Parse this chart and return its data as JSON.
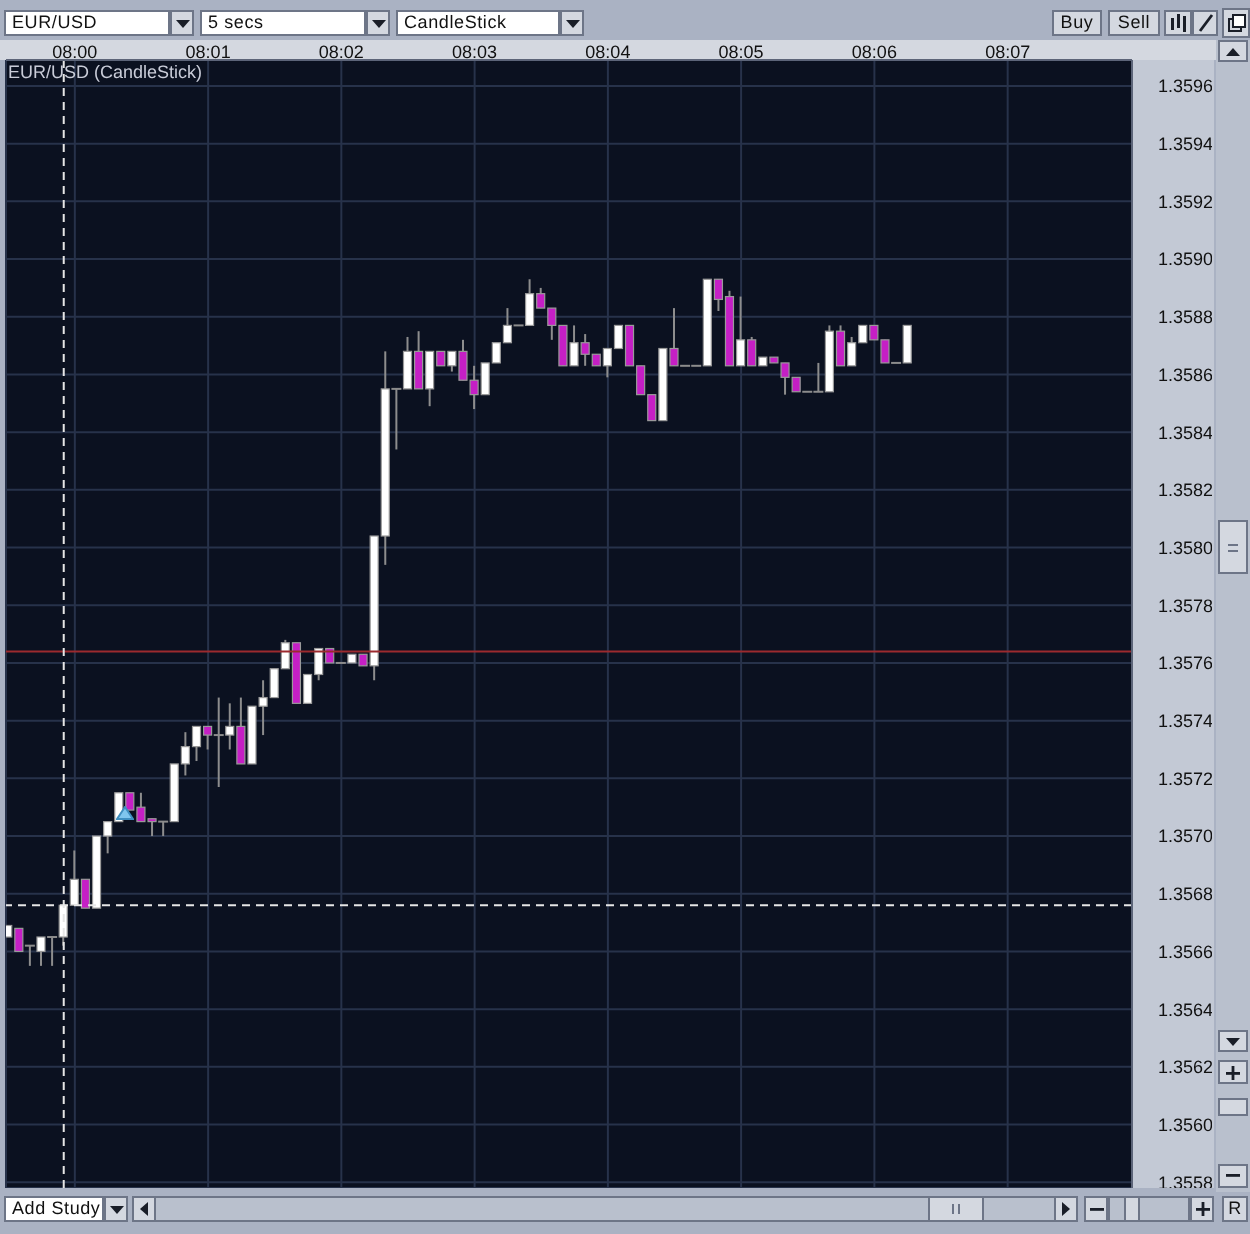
{
  "chart_data": {
    "type": "candlestick",
    "title": "EUR/USD (CandleStick)",
    "annotations": [
      "EUR/USD",
      "5 secs",
      "CandleStick",
      "Buy",
      "Sell",
      "Add Study",
      "R"
    ],
    "x": [
      7.99167,
      7.99306,
      7.99444,
      7.99583,
      7.99722,
      7.99861,
      8,
      8.00139,
      8.00278,
      8.00417,
      8.00556,
      8.00694,
      8.00833,
      8.00972,
      8.01111,
      8.0125,
      8.01389,
      8.01528,
      8.01667,
      8.01806,
      8.01944,
      8.02083,
      8.02222,
      8.02361,
      8.025,
      8.02639,
      8.02778,
      8.02917,
      8.03056,
      8.03194,
      8.03333,
      8.03472,
      8.03611,
      8.0375,
      8.03889,
      8.04028,
      8.04167,
      8.04306,
      8.04444,
      8.04583,
      8.04722,
      8.04861,
      8.05,
      8.05139,
      8.05278,
      8.05417,
      8.05556,
      8.05694,
      8.05833,
      8.05972,
      8.06111,
      8.0625,
      8.06389,
      8.06528,
      8.06667,
      8.06806,
      8.06944,
      8.07083,
      8.07222,
      8.07361,
      8.075,
      8.07639,
      8.07778,
      8.07917,
      8.08056,
      8.08194,
      8.08333,
      8.08472,
      8.08611,
      8.0875,
      8.08889,
      8.09028,
      8.09167,
      8.09306,
      8.09444,
      8.09583,
      8.09722,
      8.09861,
      8.1,
      8.10139,
      8.10278,
      8.10417
    ],
    "ohlc": [
      [
        1.35665,
        1.35669,
        1.35665,
        1.35669
      ],
      [
        1.35668,
        1.35668,
        1.3566,
        1.3566
      ],
      [
        1.35662,
        1.35662,
        1.35655,
        1.35662
      ],
      [
        1.3566,
        1.35665,
        1.35655,
        1.35665
      ],
      [
        1.35665,
        1.35665,
        1.35655,
        1.35665
      ],
      [
        1.35665,
        1.35676,
        1.35662,
        1.35676
      ],
      [
        1.35676,
        1.35695,
        1.35676,
        1.35685
      ],
      [
        1.35685,
        1.35685,
        1.35675,
        1.35675
      ],
      [
        1.35675,
        1.357,
        1.35675,
        1.357
      ],
      [
        1.357,
        1.35705,
        1.35694,
        1.35705
      ],
      [
        1.35705,
        1.35715,
        1.35705,
        1.35715
      ],
      [
        1.35715,
        1.35715,
        1.35709,
        1.35709
      ],
      [
        1.3571,
        1.35715,
        1.35705,
        1.35705
      ],
      [
        1.35706,
        1.35706,
        1.357,
        1.35705
      ],
      [
        1.35705,
        1.35705,
        1.357,
        1.35705
      ],
      [
        1.35705,
        1.35725,
        1.35705,
        1.35725
      ],
      [
        1.35725,
        1.35736,
        1.35721,
        1.35731
      ],
      [
        1.35731,
        1.35738,
        1.35726,
        1.35738
      ],
      [
        1.35738,
        1.35738,
        1.3573,
        1.35735
      ],
      [
        1.35735,
        1.35748,
        1.35717,
        1.35735
      ],
      [
        1.35735,
        1.35746,
        1.3573,
        1.35738
      ],
      [
        1.35738,
        1.35748,
        1.35725,
        1.35725
      ],
      [
        1.35725,
        1.35745,
        1.35725,
        1.35745
      ],
      [
        1.35745,
        1.35754,
        1.35735,
        1.35748
      ],
      [
        1.35748,
        1.35758,
        1.35748,
        1.35758
      ],
      [
        1.35758,
        1.35768,
        1.35758,
        1.35767
      ],
      [
        1.35767,
        1.35767,
        1.35746,
        1.35746
      ],
      [
        1.35746,
        1.35756,
        1.35746,
        1.35756
      ],
      [
        1.35756,
        1.35765,
        1.35754,
        1.35765
      ],
      [
        1.35765,
        1.35765,
        1.3576,
        1.3576
      ],
      [
        1.3576,
        1.3576,
        1.3576,
        1.3576
      ],
      [
        1.3576,
        1.35763,
        1.3576,
        1.35763
      ],
      [
        1.35763,
        1.35763,
        1.35759,
        1.35759
      ],
      [
        1.35759,
        1.35804,
        1.35754,
        1.35804
      ],
      [
        1.35804,
        1.35868,
        1.35794,
        1.35855
      ],
      [
        1.35855,
        1.35855,
        1.35834,
        1.35855
      ],
      [
        1.35855,
        1.35873,
        1.35855,
        1.35868
      ],
      [
        1.35868,
        1.35875,
        1.35855,
        1.35855
      ],
      [
        1.35855,
        1.35868,
        1.35849,
        1.35868
      ],
      [
        1.35868,
        1.35868,
        1.35863,
        1.35863
      ],
      [
        1.35863,
        1.35868,
        1.35861,
        1.35868
      ],
      [
        1.35868,
        1.35872,
        1.35858,
        1.35858
      ],
      [
        1.35858,
        1.35863,
        1.35848,
        1.35853
      ],
      [
        1.35853,
        1.35864,
        1.35853,
        1.35864
      ],
      [
        1.35864,
        1.35871,
        1.35864,
        1.35871
      ],
      [
        1.35871,
        1.35883,
        1.35871,
        1.35877
      ],
      [
        1.35877,
        1.35877,
        1.35877,
        1.35877
      ],
      [
        1.35877,
        1.35893,
        1.35877,
        1.35888
      ],
      [
        1.35888,
        1.3589,
        1.35883,
        1.35883
      ],
      [
        1.35883,
        1.35883,
        1.35872,
        1.35877
      ],
      [
        1.35877,
        1.35877,
        1.35863,
        1.35863
      ],
      [
        1.35863,
        1.35877,
        1.35863,
        1.35871
      ],
      [
        1.35871,
        1.35874,
        1.35863,
        1.35867
      ],
      [
        1.35867,
        1.35867,
        1.35863,
        1.35863
      ],
      [
        1.35863,
        1.35869,
        1.35859,
        1.35869
      ],
      [
        1.35869,
        1.35877,
        1.35869,
        1.35877
      ],
      [
        1.35877,
        1.35877,
        1.35863,
        1.35863
      ],
      [
        1.35863,
        1.35863,
        1.35853,
        1.35853
      ],
      [
        1.35853,
        1.35853,
        1.35844,
        1.35844
      ],
      [
        1.35844,
        1.35869,
        1.35844,
        1.35869
      ],
      [
        1.35869,
        1.35883,
        1.35863,
        1.35863
      ],
      [
        1.35863,
        1.35863,
        1.35863,
        1.35863
      ],
      [
        1.35863,
        1.35863,
        1.35863,
        1.35863
      ],
      [
        1.35863,
        1.35893,
        1.35863,
        1.35893
      ],
      [
        1.35893,
        1.35893,
        1.35882,
        1.35886
      ],
      [
        1.35887,
        1.35889,
        1.35863,
        1.35863
      ],
      [
        1.35863,
        1.35887,
        1.35863,
        1.35872
      ],
      [
        1.35872,
        1.35873,
        1.35863,
        1.35863
      ],
      [
        1.35863,
        1.35866,
        1.35863,
        1.35866
      ],
      [
        1.35866,
        1.35866,
        1.35864,
        1.35864
      ],
      [
        1.35864,
        1.35864,
        1.35853,
        1.35859
      ],
      [
        1.35859,
        1.35859,
        1.35854,
        1.35854
      ],
      [
        1.35854,
        1.35854,
        1.35854,
        1.35854
      ],
      [
        1.35854,
        1.35864,
        1.35854,
        1.35854
      ],
      [
        1.35854,
        1.35877,
        1.35854,
        1.35875
      ],
      [
        1.35875,
        1.35877,
        1.35863,
        1.35863
      ],
      [
        1.35863,
        1.35873,
        1.35863,
        1.35871
      ],
      [
        1.35871,
        1.35877,
        1.35871,
        1.35877
      ],
      [
        1.35877,
        1.35877,
        1.35872,
        1.35872
      ],
      [
        1.35872,
        1.35872,
        1.35864,
        1.35864
      ],
      [
        1.35864,
        1.35864,
        1.35864,
        1.35864
      ],
      [
        1.35864,
        1.35877,
        1.35864,
        1.35877
      ]
    ],
    "colors": [
      "#ffffff",
      "#c51fc5",
      "#8c8c8c",
      "#ffffff",
      "#8c8c8c",
      "#ffffff",
      "#ffffff",
      "#c51fc5",
      "#ffffff",
      "#ffffff",
      "#ffffff",
      "#c51fc5",
      "#c51fc5",
      "#c51fc5",
      "#8c8c8c",
      "#ffffff",
      "#ffffff",
      "#ffffff",
      "#c51fc5",
      "#8c8c8c",
      "#ffffff",
      "#c51fc5",
      "#ffffff",
      "#ffffff",
      "#ffffff",
      "#ffffff",
      "#c51fc5",
      "#ffffff",
      "#ffffff",
      "#c51fc5",
      "#8c8c8c",
      "#ffffff",
      "#c51fc5",
      "#ffffff",
      "#ffffff",
      "#8c8c8c",
      "#ffffff",
      "#c51fc5",
      "#ffffff",
      "#c51fc5",
      "#ffffff",
      "#c51fc5",
      "#c51fc5",
      "#ffffff",
      "#ffffff",
      "#ffffff",
      "#8c8c8c",
      "#ffffff",
      "#c51fc5",
      "#c51fc5",
      "#c51fc5",
      "#ffffff",
      "#c51fc5",
      "#c51fc5",
      "#ffffff",
      "#ffffff",
      "#c51fc5",
      "#c51fc5",
      "#c51fc5",
      "#ffffff",
      "#c51fc5",
      "#8c8c8c",
      "#8c8c8c",
      "#ffffff",
      "#c51fc5",
      "#c51fc5",
      "#ffffff",
      "#c51fc5",
      "#ffffff",
      "#c51fc5",
      "#c51fc5",
      "#c51fc5",
      "#8c8c8c",
      "#8c8c8c",
      "#ffffff",
      "#c51fc5",
      "#ffffff",
      "#ffffff",
      "#c51fc5",
      "#c51fc5",
      "#8c8c8c",
      "#ffffff"
    ],
    "xlim": [
      7.99139,
      8.13222
    ],
    "xticks": [
      {
        "value": 8,
        "label": "08:00"
      },
      {
        "value": 8.01667,
        "label": "08:01"
      },
      {
        "value": 8.03333,
        "label": "08:02"
      },
      {
        "value": 8.05,
        "label": "08:03"
      },
      {
        "value": 8.06667,
        "label": "08:04"
      },
      {
        "value": 8.08333,
        "label": "08:05"
      },
      {
        "value": 8.1,
        "label": "08:06"
      },
      {
        "value": 8.11667,
        "label": "08:07"
      }
    ],
    "ylim": [
      1.35578,
      1.35969
    ],
    "yticks": [
      1.3558,
      {
        "value": 1.356,
        "label": "1.3560"
      },
      1.3562,
      1.3564,
      1.3566,
      1.3568,
      {
        "value": 1.357,
        "label": "1.3570"
      },
      1.3572,
      1.3574,
      1.3576,
      1.3578,
      {
        "value": 1.358,
        "label": "1.3580"
      },
      1.3582,
      1.3584,
      1.3586,
      1.3588,
      {
        "value": 1.359,
        "label": "1.3590"
      },
      1.3592,
      1.3594,
      1.3596
    ],
    "ref_lines": [
      {
        "axis": "y",
        "value": 1.35764,
        "color": "#9c2a2e"
      },
      {
        "axis": "y",
        "value": 1.35676,
        "color": "#e6e6e6",
        "line_style": "dashed"
      },
      {
        "axis": "x",
        "value": 7.99861,
        "color": "#e6e6e6",
        "line_style": "dashed"
      }
    ],
    "grid": true
  }
}
